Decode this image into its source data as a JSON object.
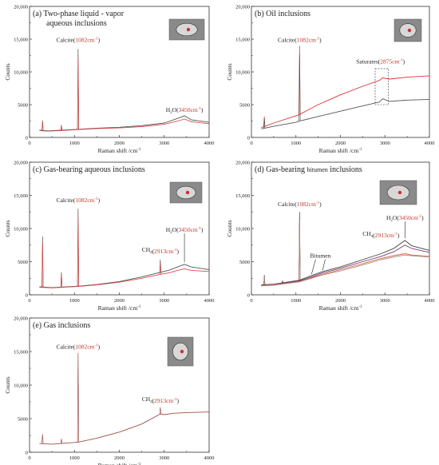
{
  "chart_data": [
    {
      "type": "line",
      "panel_label": "(a)",
      "title_lines": [
        "Two-phase liquid - vapor",
        "aqueous inclusions"
      ],
      "xlabel": "Raman shift /cm",
      "xlabel_sup": "-1",
      "ylabel": "Counts",
      "xlim": [
        0,
        4000
      ],
      "ylim": [
        0,
        20000
      ],
      "xticks": [
        "0",
        "1000",
        "2000",
        "3000",
        "4000"
      ],
      "yticks": [
        "0",
        "5000",
        "10,000",
        "15,000",
        "20,000"
      ],
      "series": [
        {
          "color": "#555555",
          "x": [
            220,
            400,
            700,
            1082,
            1500,
            2000,
            2500,
            3000,
            3300,
            3450,
            3600,
            4000
          ],
          "y": [
            1100,
            1000,
            1100,
            1250,
            1400,
            1550,
            1800,
            2200,
            2900,
            3300,
            2700,
            2300
          ]
        },
        {
          "color": "#d94a4a",
          "x": [
            220,
            400,
            700,
            1082,
            1500,
            2000,
            2500,
            3000,
            3300,
            3450,
            3600,
            4000
          ],
          "y": [
            1050,
            950,
            1050,
            1200,
            1350,
            1450,
            1650,
            2000,
            2500,
            2800,
            2400,
            2100
          ]
        }
      ],
      "spikes": [
        {
          "x": 1082,
          "y": 13500
        },
        {
          "x": 290,
          "y": 2600
        },
        {
          "x": 710,
          "y": 1900
        }
      ],
      "annotations": [
        {
          "label": "Calcite",
          "value": "1082cm",
          "sup": "-1",
          "x": 1082,
          "y": 14600
        },
        {
          "label": "H2O",
          "value": "3450cm",
          "sup": "-1",
          "x": 3450,
          "y": 3900
        }
      ]
    },
    {
      "type": "line",
      "panel_label": "(b)",
      "title_lines": [
        "Oil  inclusions"
      ],
      "xlabel": "Raman shift /cm",
      "xlabel_sup": "-1",
      "ylabel": "Counts",
      "xlim": [
        0,
        4000
      ],
      "ylim": [
        0,
        20000
      ],
      "xticks": [
        "0",
        "1000",
        "2000",
        "3000",
        "4000"
      ],
      "yticks": [
        "0",
        "5000",
        "10,000",
        "15,000",
        "20,000"
      ],
      "series": [
        {
          "color": "#e03030",
          "x": [
            220,
            500,
            1000,
            1082,
            1500,
            2000,
            2500,
            2875,
            2950,
            3100,
            3500,
            4000
          ],
          "y": [
            1500,
            2200,
            3300,
            3500,
            5000,
            6500,
            7800,
            8700,
            9100,
            8900,
            9200,
            9400
          ]
        },
        {
          "color": "#555555",
          "x": [
            220,
            500,
            1000,
            1082,
            1500,
            2000,
            2500,
            2875,
            2950,
            3100,
            3500,
            4000
          ],
          "y": [
            1300,
            1700,
            2300,
            2500,
            3200,
            4000,
            4800,
            5400,
            5900,
            5500,
            5700,
            5800
          ]
        }
      ],
      "spikes": [
        {
          "x": 1082,
          "y": 14000
        },
        {
          "x": 290,
          "y": 3200
        }
      ],
      "annotations": [
        {
          "label": "Calcite",
          "value": "1082cm",
          "sup": "-1",
          "x": 1082,
          "y": 14600
        },
        {
          "label": "Saturates",
          "value": "2875cm",
          "sup": "-1",
          "x": 2900,
          "y": 11300
        }
      ],
      "box": {
        "x0": 2780,
        "x1": 3080,
        "y0": 5000,
        "y1": 10500
      }
    },
    {
      "type": "line",
      "panel_label": "(c)",
      "title_lines": [
        "Gas-bearing aqueous inclusions"
      ],
      "xlabel": "Raman shift /cm",
      "xlabel_sup": "-1",
      "ylabel": "Counts",
      "xlim": [
        0,
        4000
      ],
      "ylim": [
        0,
        20000
      ],
      "xticks": [
        "0",
        "1000",
        "2000",
        "3000",
        "4000"
      ],
      "yticks": [
        "0",
        "5000",
        "10,000",
        "15,000",
        "20,000"
      ],
      "series": [
        {
          "color": "#555555",
          "x": [
            220,
            500,
            1082,
            1500,
            2000,
            2500,
            2913,
            3100,
            3300,
            3450,
            3600,
            4000
          ],
          "y": [
            1200,
            1100,
            1300,
            1550,
            2000,
            2700,
            3400,
            3700,
            4200,
            4600,
            4200,
            3800
          ]
        },
        {
          "color": "#d94a4a",
          "x": [
            220,
            500,
            1082,
            1500,
            2000,
            2500,
            2913,
            3100,
            3300,
            3450,
            3600,
            4000
          ],
          "y": [
            1150,
            1050,
            1250,
            1500,
            1900,
            2500,
            3100,
            3300,
            3700,
            3900,
            3700,
            3500
          ]
        }
      ],
      "spikes": [
        {
          "x": 290,
          "y": 8800
        },
        {
          "x": 710,
          "y": 3400
        },
        {
          "x": 1082,
          "y": 13000
        },
        {
          "x": 2913,
          "y": 5300
        }
      ],
      "annotations": [
        {
          "label": "Calcite",
          "value": "1082cm",
          "sup": "-1",
          "x": 1082,
          "y": 14000
        },
        {
          "label": "H2O",
          "value": "3450cm",
          "sup": "-1",
          "x": 3450,
          "y": 9500
        },
        {
          "label": "CH4",
          "value": "2913cm",
          "sup": "-1",
          "x": 2913,
          "y": 6500
        }
      ]
    },
    {
      "type": "line",
      "panel_label": "(d)",
      "title_lines": [
        "Gas-bearing bitumen inclusions"
      ],
      "title_small": "bitumen",
      "xlabel": "Raman shift /cm",
      "xlabel_sup": "-1",
      "ylabel": "Counts",
      "xlim": [
        0,
        4000
      ],
      "ylim": [
        0,
        20000
      ],
      "xticks": [
        "0",
        "1000",
        "2000",
        "3000",
        "4000"
      ],
      "yticks": [
        "0",
        "5000",
        "10,000",
        "15,000",
        "20,000"
      ],
      "series": [
        {
          "color": "#404040",
          "x": [
            220,
            500,
            1082,
            1350,
            1600,
            2000,
            2500,
            2913,
            3200,
            3450,
            3600,
            4000
          ],
          "y": [
            1500,
            1600,
            2200,
            2900,
            3500,
            4200,
            5300,
            6200,
            7000,
            8200,
            7400,
            6700
          ]
        },
        {
          "color": "#7a3a7a",
          "x": [
            220,
            500,
            1082,
            1350,
            1600,
            2000,
            2500,
            2913,
            3200,
            3450,
            3600,
            4000
          ],
          "y": [
            1450,
            1550,
            2100,
            2700,
            3300,
            4000,
            5000,
            5800,
            6500,
            7500,
            7000,
            6400
          ]
        },
        {
          "color": "#e06040",
          "x": [
            220,
            500,
            1082,
            1350,
            1600,
            2000,
            2500,
            2913,
            3200,
            3450,
            3600,
            4000
          ],
          "y": [
            1400,
            1500,
            2000,
            2600,
            3100,
            3800,
            4700,
            5500,
            5900,
            6200,
            6000,
            5800
          ]
        },
        {
          "color": "#a09080",
          "x": [
            220,
            500,
            1082,
            1350,
            1600,
            2000,
            2500,
            2913,
            3200,
            3450,
            3600,
            4000
          ],
          "y": [
            1350,
            1450,
            1950,
            2500,
            3000,
            3600,
            4500,
            5300,
            5700,
            6000,
            5900,
            5700
          ]
        }
      ],
      "spikes": [
        {
          "x": 1082,
          "y": 12500
        },
        {
          "x": 290,
          "y": 3000
        },
        {
          "x": 700,
          "y": 2100
        }
      ],
      "annotations": [
        {
          "label": "Calcite",
          "value": "1082cm",
          "sup": "-1",
          "x": 1082,
          "y": 13400
        },
        {
          "label": "H2O",
          "value": "3450cm",
          "sup": "-1",
          "x": 3450,
          "y": 11300
        },
        {
          "label": "CH4",
          "value": "2913cm",
          "sup": "-1",
          "x": 2913,
          "y": 8900
        },
        {
          "label": "Bitumen",
          "value": "",
          "sup": "",
          "x": 1550,
          "y": 5600
        }
      ]
    },
    {
      "type": "line",
      "panel_label": "(e)",
      "title_lines": [
        "Gas inclusions"
      ],
      "xlabel": "Raman shift /cm",
      "xlabel_sup": "-1",
      "ylabel": "Counts",
      "xlim": [
        0,
        4000
      ],
      "ylim": [
        0,
        20000
      ],
      "xticks": [
        "0",
        "1000",
        "2000",
        "3000",
        "4000"
      ],
      "yticks": [
        "0",
        "5000",
        "10,000",
        "15,000",
        "20,000"
      ],
      "series": [
        {
          "color": "#a0504a",
          "x": [
            220,
            500,
            1082,
            1500,
            2000,
            2500,
            2913,
            3000,
            3200,
            3500,
            4000
          ],
          "y": [
            1300,
            1200,
            1500,
            2100,
            3000,
            4200,
            5700,
            5600,
            5800,
            5900,
            6000
          ]
        }
      ],
      "spikes": [
        {
          "x": 1082,
          "y": 14800
        },
        {
          "x": 290,
          "y": 2700
        },
        {
          "x": 710,
          "y": 2000
        },
        {
          "x": 2913,
          "y": 6700
        }
      ],
      "annotations": [
        {
          "label": "Calcite",
          "value": "1082cm",
          "sup": "-1",
          "x": 1082,
          "y": 15400
        },
        {
          "label": "CH4",
          "value": "2913cm",
          "sup": "-1",
          "x": 2913,
          "y": 7600
        }
      ]
    }
  ]
}
